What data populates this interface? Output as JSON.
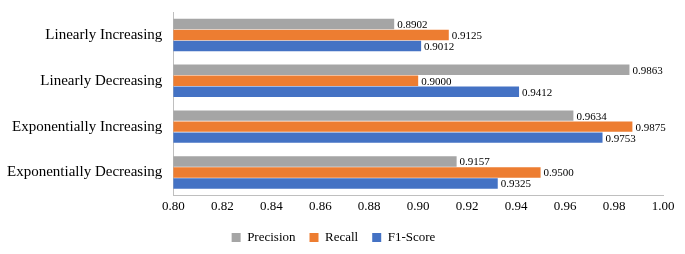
{
  "chart_data": {
    "type": "bar",
    "orientation": "horizontal",
    "categories": [
      "Linearly Increasing",
      "Linearly Decreasing",
      "Exponentially Increasing",
      "Exponentially Decreasing"
    ],
    "series": [
      {
        "name": "Precision",
        "color": "#a5a5a5",
        "values": [
          0.8902,
          0.9863,
          0.9634,
          0.9157
        ],
        "value_labels": [
          "0.8902",
          "0.9863",
          "0.9634",
          "0.9157"
        ]
      },
      {
        "name": "Recall",
        "color": "#ed7d31",
        "values": [
          0.9125,
          0.9,
          0.9875,
          0.95
        ],
        "value_labels": [
          "0.9125",
          "0.9000",
          "0.9875",
          "0.9500"
        ]
      },
      {
        "name": "F1-Score",
        "color": "#4472c4",
        "values": [
          0.9012,
          0.9412,
          0.9753,
          0.9325
        ],
        "value_labels": [
          "0.9012",
          "0.9412",
          "0.9753",
          "0.9325"
        ]
      }
    ],
    "xlim": [
      0.8,
      1.0
    ],
    "xticks": [
      {
        "value": 0.8,
        "label": "0.80"
      },
      0.82,
      0.84,
      0.86,
      0.88,
      {
        "value": 0.9,
        "label": "0.90"
      },
      0.92,
      0.94,
      0.96,
      0.98,
      {
        "value": 1.0,
        "label": "1.00"
      }
    ],
    "grid": false,
    "legend": "bottom",
    "data_labels": true
  }
}
